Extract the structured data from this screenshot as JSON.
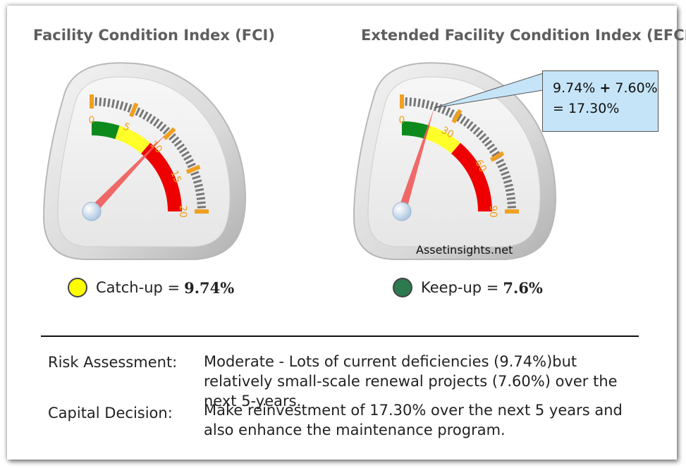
{
  "gauges": [
    {
      "title": "Facility Condition Index (FCI)",
      "scale_labels": [
        "0",
        "5",
        "10",
        "15",
        "20"
      ],
      "scale_max": 20,
      "needle_value": 9.74,
      "legend_label": "Catch-up =",
      "legend_value": "9.74%",
      "legend_color": "#ffff00"
    },
    {
      "title": "Extended Facility Condition Index (EFCI)",
      "scale_labels": [
        "0",
        "30",
        "60",
        "90"
      ],
      "scale_max": 90,
      "needle_value": 17.3,
      "legend_label": "Keep-up =",
      "legend_value": "7.6%",
      "legend_color": "#2e7a4f"
    }
  ],
  "colors": {
    "band_green": "#0d8a1d",
    "band_yellow": "#ffff2a",
    "band_red": "#ee0000",
    "tick_orange": "#f0a020",
    "needle": "#f05a5a",
    "callout_bg": "#c5e4f7"
  },
  "callout": {
    "line1_a": "9.74%",
    "line1_op": "+",
    "line1_b": "7.60%",
    "line2": "= 17.30%"
  },
  "watermark": "Assetinsights.net",
  "risk": {
    "label": "Risk Assessment:",
    "text": "Moderate - Lots of current deficiencies (9.74%)but relatively small-scale renewal projects (7.60%) over the next 5-years."
  },
  "capital": {
    "label": "Capital Decision:",
    "text": "Make reinvestment of 17.30% over the next 5 years and also enhance the maintenance program."
  }
}
